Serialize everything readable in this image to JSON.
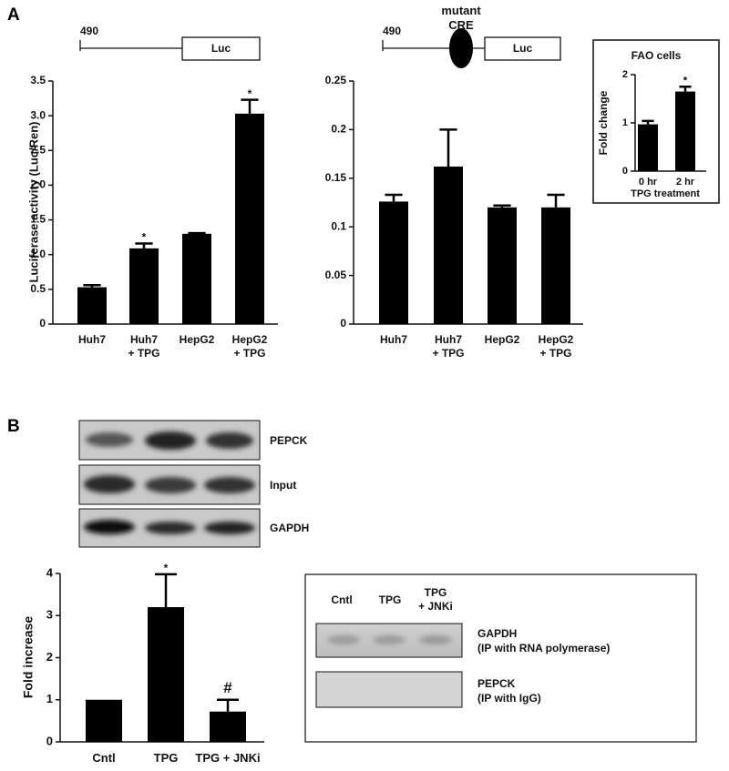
{
  "panels": [
    "A",
    "B"
  ],
  "chart_data": [
    {
      "type": "bar",
      "ylabel": "Luciferase activity (Luc/Ren)",
      "construct": {
        "site": "490",
        "reporter": "Luc"
      },
      "categories": [
        "Huh7",
        "Huh7\n+ TPG",
        "HepG2",
        "HepG2\n+ TPG"
      ],
      "values": [
        0.53,
        1.09,
        1.3,
        3.03
      ],
      "errors": [
        0.03,
        0.07,
        0.01,
        0.2
      ],
      "significance": [
        null,
        "*",
        null,
        "*"
      ],
      "color": "#000000",
      "ylim": [
        0,
        3.5
      ],
      "yticks": [
        0,
        0.5,
        {
          "value": 1,
          "label": "1.0"
        },
        1.5,
        {
          "value": 2,
          "label": "2.0"
        },
        2.5,
        {
          "value": 3,
          "label": "3.0"
        },
        3.5
      ]
    },
    {
      "type": "bar",
      "construct": {
        "site": "490",
        "element": "mutant\nCRE",
        "reporter": "Luc"
      },
      "categories": [
        "Huh7",
        "Huh7\n+ TPG",
        "HepG2",
        "HepG2\n+ TPG"
      ],
      "values": [
        0.126,
        0.162,
        0.12,
        0.12
      ],
      "errors": [
        0.007,
        0.038,
        0.002,
        0.013
      ],
      "color": "#000000",
      "ylim": [
        0,
        0.25
      ],
      "yticks": [
        0,
        0.05,
        0.1,
        0.15,
        0.2,
        0.25
      ]
    },
    {
      "type": "bar",
      "title": "FAO cells",
      "ylabel": "Fold change",
      "xlabel": "TPG treatment",
      "categories": [
        "0 hr",
        "2 hr"
      ],
      "values": [
        0.97,
        1.65
      ],
      "errors": [
        0.07,
        0.1
      ],
      "significance": [
        null,
        "*"
      ],
      "color": "#000000",
      "ylim": [
        0,
        2
      ],
      "yticks": [
        0,
        1,
        2
      ]
    },
    {
      "type": "bar",
      "ylabel": "Fold increase",
      "categories": [
        "Cntl",
        "TPG",
        "TPG + JNKi"
      ],
      "values": [
        1.0,
        3.2,
        0.72
      ],
      "errors": [
        null,
        0.78,
        0.28
      ],
      "significance": [
        null,
        "*",
        "#"
      ],
      "color": "#000000",
      "ylim": [
        0,
        4
      ],
      "yticks": [
        0,
        1,
        2,
        3,
        4
      ]
    }
  ],
  "blot": {
    "labels": [
      "PEPCK",
      "Input",
      "GAPDH"
    ]
  },
  "chip": {
    "lanes": [
      "Cntl",
      "TPG",
      "TPG\n+ JNKi"
    ],
    "rows": [
      {
        "name": "GAPDH",
        "note": "(IP with RNA polymerase)"
      },
      {
        "name": "PEPCK",
        "note": "(IP with IgG)"
      }
    ]
  }
}
